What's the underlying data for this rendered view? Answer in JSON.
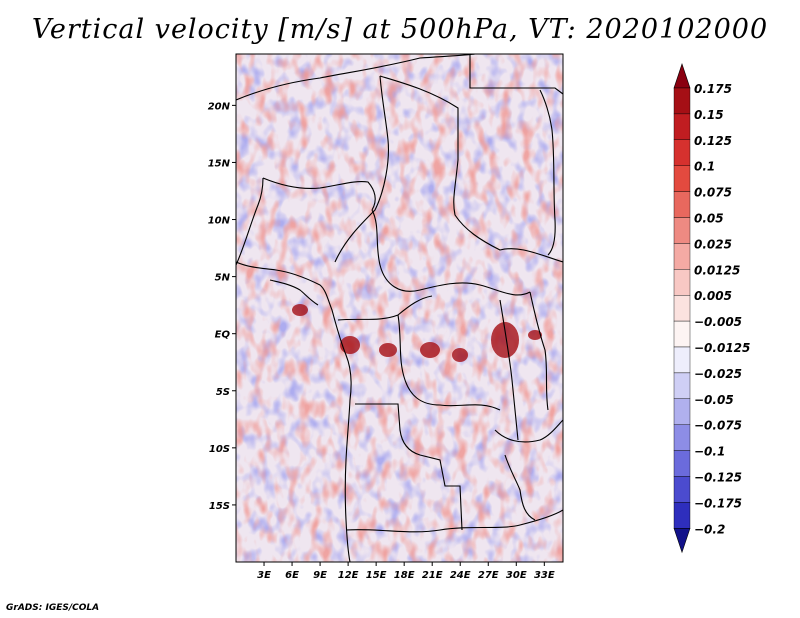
{
  "title": "Vertical velocity [m/s] at 500hPa, VT: 2020102000",
  "credit": "GrADS: IGES/COLA",
  "map": {
    "lat_labels": [
      {
        "label": "20N",
        "lat": 20
      },
      {
        "label": "15N",
        "lat": 15
      },
      {
        "label": "10N",
        "lat": 10
      },
      {
        "label": "5N",
        "lat": 5
      },
      {
        "label": "EQ",
        "lat": 0
      },
      {
        "label": "5S",
        "lat": -5
      },
      {
        "label": "10S",
        "lat": -10
      },
      {
        "label": "15S",
        "lat": -15
      }
    ],
    "lon_labels": [
      {
        "label": "3E",
        "lon": 3
      },
      {
        "label": "6E",
        "lon": 6
      },
      {
        "label": "9E",
        "lon": 9
      },
      {
        "label": "12E",
        "lon": 12
      },
      {
        "label": "15E",
        "lon": 15
      },
      {
        "label": "18E",
        "lon": 18
      },
      {
        "label": "21E",
        "lon": 21
      },
      {
        "label": "24E",
        "lon": 24
      },
      {
        "label": "27E",
        "lon": 27
      },
      {
        "label": "30E",
        "lon": 30
      },
      {
        "label": "33E",
        "lon": 33
      }
    ],
    "lon_range": [
      0,
      35
    ],
    "lat_range": [
      -20,
      24.5
    ]
  },
  "colorbar": {
    "levels": [
      {
        "label": "0.175",
        "color": "#a50f15"
      },
      {
        "label": "0.15",
        "color": "#c01d21"
      },
      {
        "label": "0.125",
        "color": "#d6312e"
      },
      {
        "label": "0.1",
        "color": "#e34a3f"
      },
      {
        "label": "0.075",
        "color": "#e8685e"
      },
      {
        "label": "0.05",
        "color": "#ee8a82"
      },
      {
        "label": "0.025",
        "color": "#f4aaa4"
      },
      {
        "label": "0.0125",
        "color": "#f8c8c4"
      },
      {
        "label": "0.005",
        "color": "#fbe2df"
      },
      {
        "label": "−0.005",
        "color": "#fdf4f3"
      },
      {
        "label": "−0.0125",
        "color": "#eeeefc"
      },
      {
        "label": "−0.025",
        "color": "#cfcff5"
      },
      {
        "label": "−0.05",
        "color": "#b0b0ee"
      },
      {
        "label": "−0.075",
        "color": "#8d8de6"
      },
      {
        "label": "−0.1",
        "color": "#6b6bdc"
      },
      {
        "label": "−0.125",
        "color": "#4b4bcf"
      },
      {
        "label": "−0.175",
        "color": "#2e2ebd"
      },
      {
        "label": "−0.2",
        "color": "#1b1ba3"
      }
    ],
    "top_cap_color": "#8a0010",
    "bottom_cap_color": "#12128a"
  }
}
